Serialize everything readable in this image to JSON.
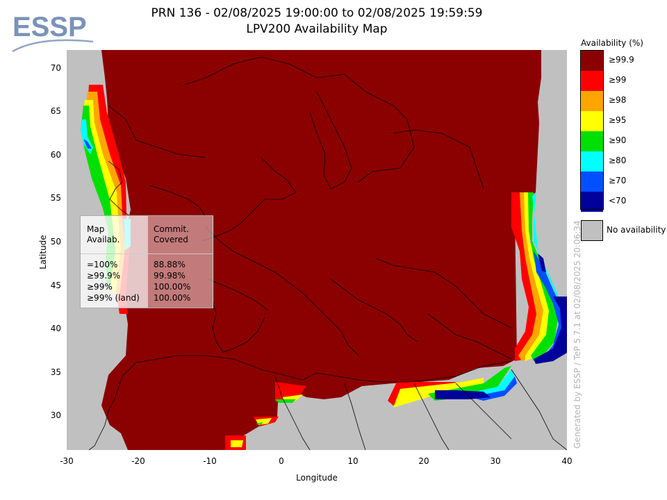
{
  "header": {
    "title_line1": "PRN 136 - 02/08/2025 19:00:00 to 02/08/2025 19:59:59",
    "title_line2": "LPV200 Availability Map"
  },
  "logo": {
    "text": "ESSP",
    "color": "#7a93b7"
  },
  "axes": {
    "xlabel": "Longitude",
    "ylabel": "Latitude",
    "xlim": [
      -30,
      40
    ],
    "ylim": [
      26,
      72
    ],
    "xticks": [
      "-30",
      "-20",
      "-10",
      "0",
      "10",
      "20",
      "30",
      "40"
    ],
    "yticks": [
      "70",
      "65",
      "60",
      "55",
      "50",
      "45",
      "40",
      "35",
      "30"
    ]
  },
  "legend": {
    "title": "Availability (%)",
    "items": [
      {
        "label": "≥99.9",
        "color": "#8b0000"
      },
      {
        "label": "≥99",
        "color": "#ff0000"
      },
      {
        "label": "≥98",
        "color": "#ffa500"
      },
      {
        "label": "≥95",
        "color": "#ffff00"
      },
      {
        "label": "≥90",
        "color": "#00e000"
      },
      {
        "label": "≥80",
        "color": "#00ffff"
      },
      {
        "label": "≥70",
        "color": "#0050ff"
      },
      {
        "label": "<70",
        "color": "#00009b"
      }
    ],
    "no_availability_label": "No availability",
    "no_availability_color": "#c0c0c0"
  },
  "stats_table": {
    "col1_header_line1": "Map",
    "col1_header_line2": "Availab.",
    "col2_header_line1": "Commit.",
    "col2_header_line2": "Covered",
    "rows": [
      {
        "level": "=100%",
        "covered": "88.88%"
      },
      {
        "level": "≥99.9%",
        "covered": "99.98%"
      },
      {
        "level": "≥99%",
        "covered": "100.00%"
      },
      {
        "level": "≥99% (land)",
        "covered": "100.00%"
      }
    ]
  },
  "credit": "Generated by ESSP / TeP 5.7.1 at 02/08/2025 20:06:34"
}
